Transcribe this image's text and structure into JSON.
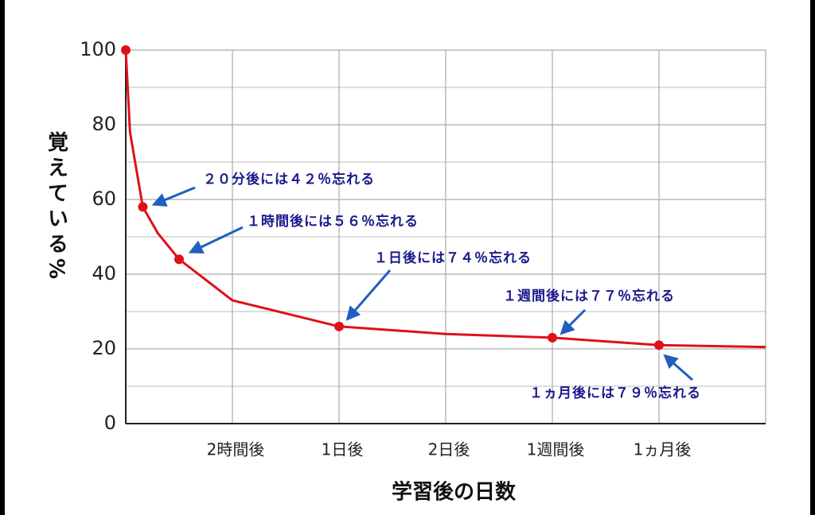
{
  "chart_data": {
    "type": "line",
    "ylabel": "覚えている%",
    "xlabel": "学習後の日数",
    "xlim": [
      0,
      6
    ],
    "xticks": [
      {
        "value": 1,
        "label": "2時間後"
      },
      {
        "value": 2,
        "label": "1日後"
      },
      {
        "value": 3,
        "label": "2日後"
      },
      {
        "value": 4,
        "label": "1週間後"
      },
      {
        "value": 5,
        "label": "1ヵ月後"
      }
    ],
    "ylim": [
      0,
      100
    ],
    "yticks": [
      0,
      20,
      40,
      60,
      80,
      100
    ],
    "y_minor_grid": [
      10,
      30,
      50,
      70,
      90
    ],
    "grid": true,
    "color": "#e0101a",
    "x": [
      0,
      0.04,
      0.16,
      0.3,
      0.5,
      1,
      2,
      3,
      4,
      5,
      6
    ],
    "values": [
      100,
      78,
      58,
      51,
      44,
      33,
      26,
      24,
      23,
      21,
      20.5
    ],
    "markers": {
      "x": [
        0,
        0.16,
        0.5,
        2,
        4,
        5
      ],
      "values": [
        100,
        58,
        44,
        26,
        23,
        21
      ]
    },
    "annotations": [
      "２０分後には４２％忘れる",
      "１時間後には５６％忘れる",
      "１日後には７４％忘れる",
      "１週間後には７７％忘れる",
      "１ヵ月後には７９％忘れる"
    ]
  }
}
